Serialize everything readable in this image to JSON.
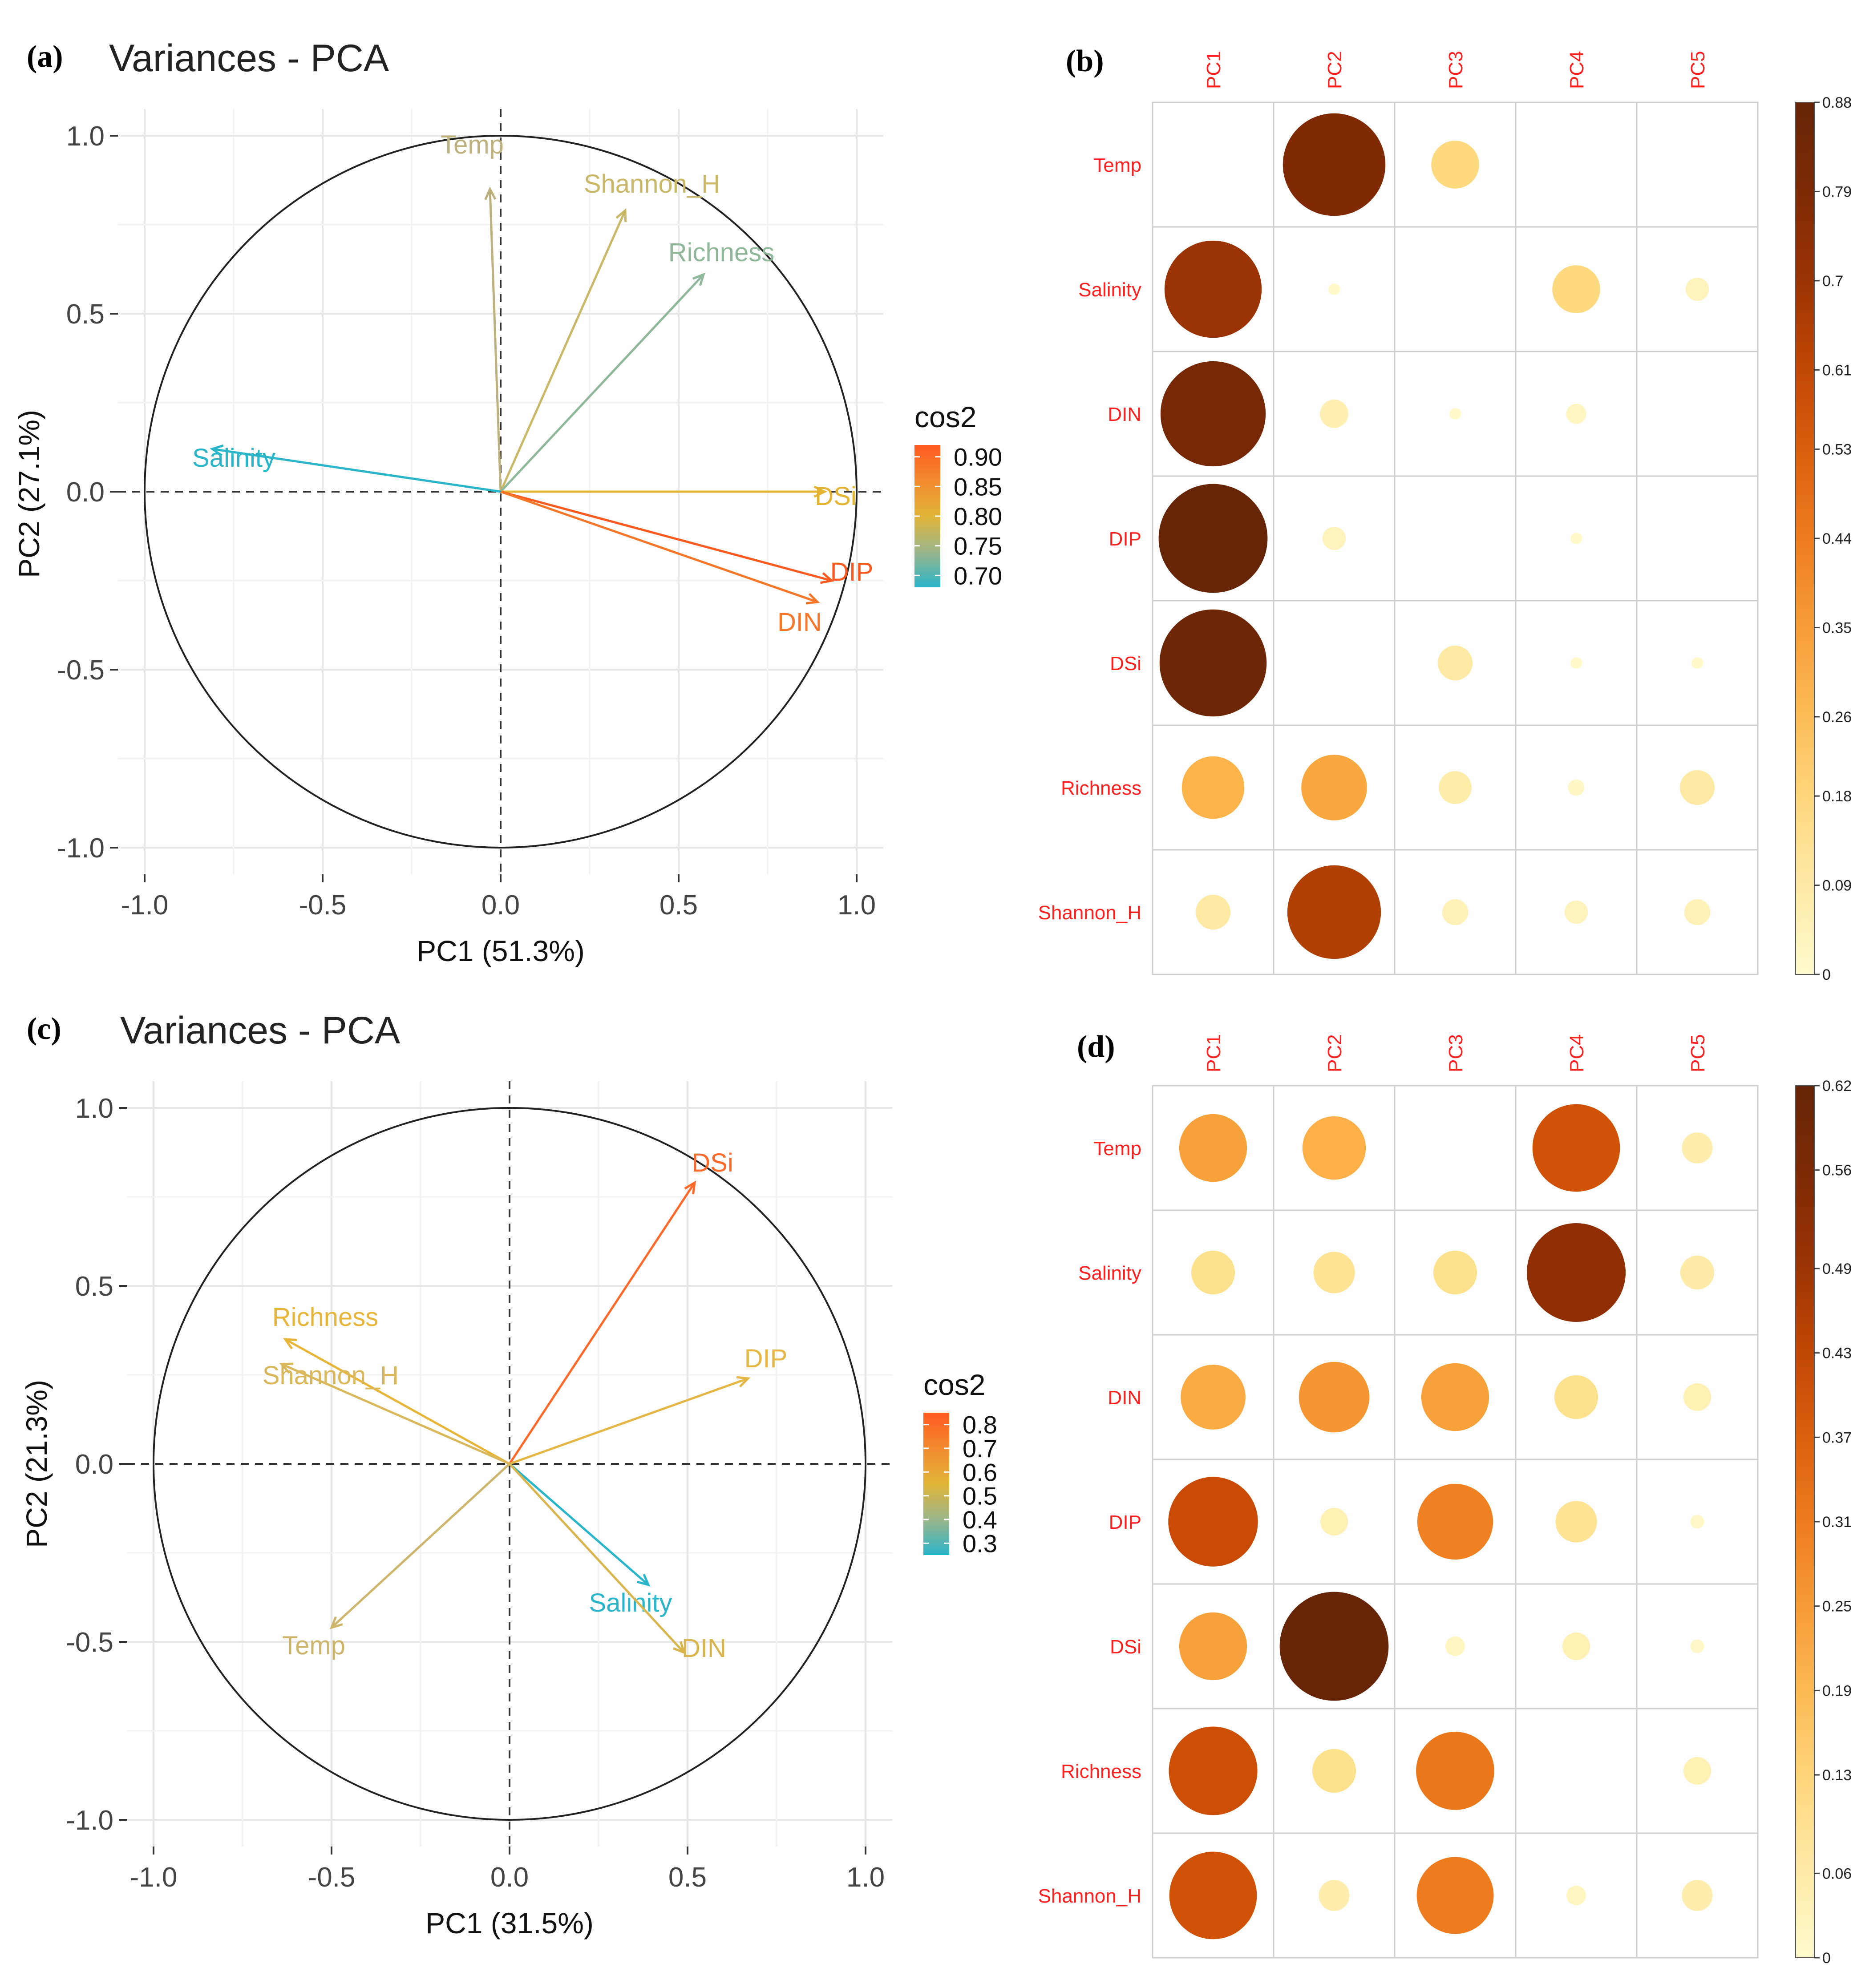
{
  "chart_data": [
    {
      "type": "scatter",
      "subtype": "pca-variable-correlation-circle",
      "panel": "(a)",
      "title": "Variances - PCA",
      "xlabel": "PC1 (51.3%)",
      "ylabel": "PC2 (27.1%)",
      "xlim": [
        -1,
        1
      ],
      "ylim": [
        -1,
        1
      ],
      "xticks": [
        "-1.0",
        "-0.5",
        "0.0",
        "0.5",
        "1.0"
      ],
      "yticks": [
        "-1.0",
        "-0.5",
        "0.0",
        "0.5",
        "1.0"
      ],
      "grid": true,
      "legend": {
        "title": "cos2",
        "min": 0.68,
        "max": 0.92,
        "ticks": [
          "0.90",
          "0.85",
          "0.80",
          "0.75",
          "0.70"
        ],
        "tick_values": [
          0.9,
          0.85,
          0.8,
          0.75,
          0.7
        ],
        "colors": [
          "#2bb5c9",
          "#9bb58a",
          "#e0b437",
          "#f28a2e",
          "#ff5a1f"
        ],
        "placement": "right"
      },
      "variables": [
        {
          "name": "Temp",
          "x": -0.03,
          "y": 0.85,
          "cos2": 0.74,
          "color": "#bcb07c"
        },
        {
          "name": "Shannon_H",
          "x": 0.35,
          "y": 0.79,
          "cos2": 0.76,
          "color": "#c9b868"
        },
        {
          "name": "Richness",
          "x": 0.57,
          "y": 0.61,
          "cos2": 0.72,
          "color": "#8fb79a"
        },
        {
          "name": "Salinity",
          "x": -0.81,
          "y": 0.12,
          "cos2": 0.68,
          "color": "#2bb5c9"
        },
        {
          "name": "DSi",
          "x": 0.91,
          "y": 0.0,
          "cos2": 0.83,
          "color": "#e3b332"
        },
        {
          "name": "DIP",
          "x": 0.93,
          "y": -0.25,
          "cos2": 0.92,
          "color": "#ff5a1f"
        },
        {
          "name": "DIN",
          "x": 0.89,
          "y": -0.31,
          "cos2": 0.88,
          "color": "#f7772a"
        }
      ]
    },
    {
      "type": "heatmap",
      "subtype": "corrplot-circle",
      "panel": "(b)",
      "columns": [
        "PC1",
        "PC2",
        "PC3",
        "PC4",
        "PC5"
      ],
      "rows": [
        "Temp",
        "Salinity",
        "DIN",
        "DIP",
        "DSi",
        "Richness",
        "Shannon_H"
      ],
      "values": [
        [
          0.0,
          0.78,
          0.17,
          0.0,
          0.0
        ],
        [
          0.7,
          0.01,
          0.0,
          0.17,
          0.04
        ],
        [
          0.82,
          0.06,
          0.01,
          0.03,
          0.0
        ],
        [
          0.88,
          0.04,
          0.0,
          0.01,
          0.0
        ],
        [
          0.85,
          0.0,
          0.09,
          0.01,
          0.01
        ],
        [
          0.29,
          0.32,
          0.08,
          0.02,
          0.09
        ],
        [
          0.09,
          0.65,
          0.05,
          0.04,
          0.05
        ]
      ],
      "colorbar": {
        "min": 0,
        "max": 0.88,
        "ticks": [
          "0.88",
          "0.79",
          "0.7",
          "0.61",
          "0.53",
          "0.44",
          "0.35",
          "0.26",
          "0.18",
          "0.09",
          "0"
        ],
        "tick_values": [
          0.88,
          0.79,
          0.7,
          0.61,
          0.53,
          0.44,
          0.35,
          0.26,
          0.18,
          0.09,
          0
        ]
      }
    },
    {
      "type": "scatter",
      "subtype": "pca-variable-correlation-circle",
      "panel": "(c)",
      "title": "Variances - PCA",
      "xlabel": "PC1 (31.5%)",
      "ylabel": "PC2 (21.3%)",
      "xlim": [
        -1,
        1
      ],
      "ylim": [
        -1,
        1
      ],
      "xticks": [
        "-1.0",
        "-0.5",
        "0.0",
        "0.5",
        "1.0"
      ],
      "yticks": [
        "-1.0",
        "-0.5",
        "0.0",
        "0.5",
        "1.0"
      ],
      "grid": true,
      "legend": {
        "title": "cos2",
        "min": 0.25,
        "max": 0.85,
        "ticks": [
          "0.8",
          "0.7",
          "0.6",
          "0.5",
          "0.4",
          "0.3"
        ],
        "tick_values": [
          0.8,
          0.7,
          0.6,
          0.5,
          0.4,
          0.3
        ],
        "colors": [
          "#2bb5c9",
          "#9bb58a",
          "#e0b437",
          "#f28a2e",
          "#ff5a1f"
        ],
        "placement": "right"
      },
      "variables": [
        {
          "name": "DSi",
          "x": 0.52,
          "y": 0.79,
          "cos2": 0.85,
          "color": "#ff6a2a"
        },
        {
          "name": "DIP",
          "x": 0.67,
          "y": 0.24,
          "cos2": 0.55,
          "color": "#e3b645"
        },
        {
          "name": "Richness",
          "x": -0.63,
          "y": 0.35,
          "cos2": 0.56,
          "color": "#e6b539"
        },
        {
          "name": "Shannon_H",
          "x": -0.64,
          "y": 0.28,
          "cos2": 0.52,
          "color": "#d8b85a"
        },
        {
          "name": "Temp",
          "x": -0.5,
          "y": -0.46,
          "cos2": 0.46,
          "color": "#cdb56c"
        },
        {
          "name": "Salinity",
          "x": 0.39,
          "y": -0.34,
          "cos2": 0.27,
          "color": "#2bb5c9"
        },
        {
          "name": "DIN",
          "x": 0.49,
          "y": -0.53,
          "cos2": 0.52,
          "color": "#d9b54e"
        }
      ]
    },
    {
      "type": "heatmap",
      "subtype": "corrplot-circle",
      "panel": "(d)",
      "columns": [
        "PC1",
        "PC2",
        "PC3",
        "PC4",
        "PC5"
      ],
      "rows": [
        "Temp",
        "Salinity",
        "DIN",
        "DIP",
        "DSi",
        "Richness",
        "Shannon_H"
      ],
      "values": [
        [
          0.24,
          0.21,
          0.0,
          0.4,
          0.05
        ],
        [
          0.1,
          0.09,
          0.1,
          0.51,
          0.06
        ],
        [
          0.22,
          0.26,
          0.24,
          0.1,
          0.04
        ],
        [
          0.42,
          0.04,
          0.3,
          0.09,
          0.01
        ],
        [
          0.24,
          0.62,
          0.02,
          0.04,
          0.01
        ],
        [
          0.41,
          0.1,
          0.32,
          0.0,
          0.04
        ],
        [
          0.4,
          0.05,
          0.31,
          0.02,
          0.05
        ]
      ],
      "colorbar": {
        "min": 0,
        "max": 0.62,
        "ticks": [
          "0.62",
          "0.56",
          "0.49",
          "0.43",
          "0.37",
          "0.31",
          "0.25",
          "0.19",
          "0.13",
          "0.06",
          "0"
        ],
        "tick_values": [
          0.62,
          0.56,
          0.49,
          0.43,
          0.37,
          0.31,
          0.25,
          0.19,
          0.13,
          0.06,
          0
        ]
      }
    }
  ]
}
